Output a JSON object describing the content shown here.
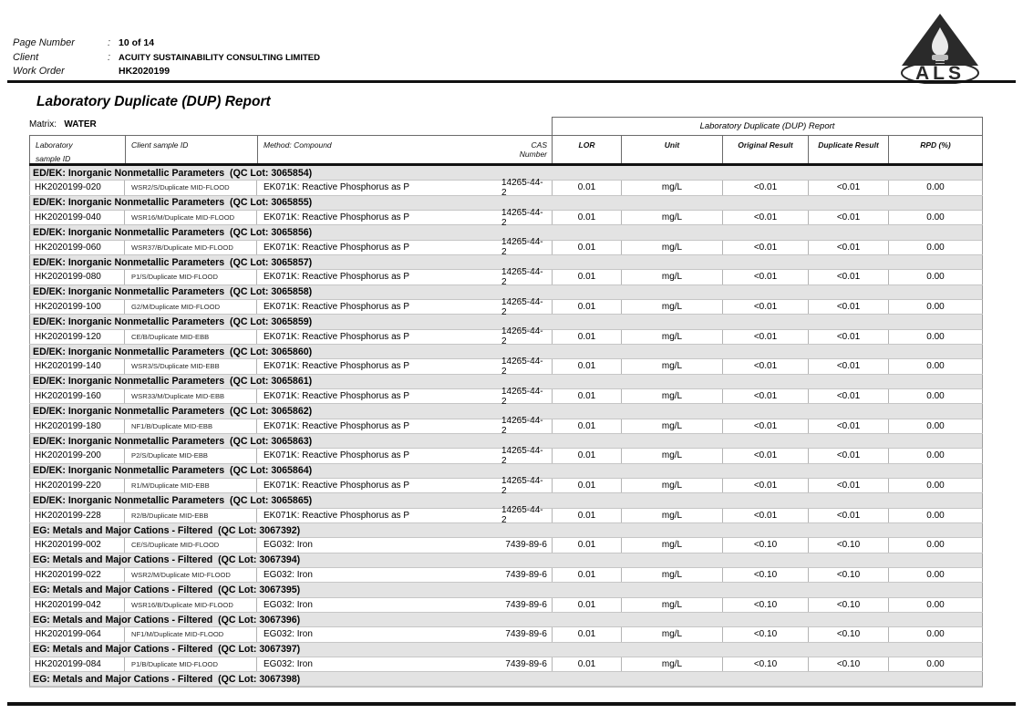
{
  "page_header": {
    "fields": [
      {
        "label": "Page Number",
        "sep": ":",
        "value": "10 of 14"
      },
      {
        "label": "Client",
        "sep": ":",
        "value": "ACUITY SUSTAINABILITY CONSULTING LIMITED"
      },
      {
        "label": "Work Order",
        "sep": "",
        "value": "HK2020199"
      }
    ],
    "logo_text": "ALS"
  },
  "title": "Laboratory Duplicate (DUP) Report",
  "matrix": {
    "label": "Matrix:",
    "value": "WATER"
  },
  "colors": {
    "group_row_bg": "#e3e3e3",
    "rule": "#111111",
    "logo_ink": "#222222"
  },
  "table": {
    "span_header": "Laboratory Duplicate (DUP) Report",
    "columns": {
      "lab_line1": "Laboratory",
      "lab_line2": "sample ID",
      "client": "Client sample ID",
      "method": "Method: Compound",
      "cas": "CAS Number",
      "lor": "LOR",
      "unit": "Unit",
      "original": "Original Result",
      "duplicate": "Duplicate Result",
      "rpd": "RPD (%)"
    },
    "groups": [
      {
        "label": "ED/EK: Inorganic Nonmetallic Parameters  (QC Lot: 3065854)",
        "rows": [
          [
            "HK2020199-020",
            "WSR2/S/Duplicate MID-FLOOD",
            "EK071K: Reactive Phosphorus as P",
            "14265-44-2",
            "0.01",
            "mg/L",
            "<0.01",
            "<0.01",
            "0.00"
          ]
        ]
      },
      {
        "label": "ED/EK: Inorganic Nonmetallic Parameters  (QC Lot: 3065855)",
        "rows": [
          [
            "HK2020199-040",
            "WSR16/M/Duplicate MID-FLOOD",
            "EK071K: Reactive Phosphorus as P",
            "14265-44-2",
            "0.01",
            "mg/L",
            "<0.01",
            "<0.01",
            "0.00"
          ]
        ]
      },
      {
        "label": "ED/EK: Inorganic Nonmetallic Parameters  (QC Lot: 3065856)",
        "rows": [
          [
            "HK2020199-060",
            "WSR37/B/Duplicate MID-FLOOD",
            "EK071K: Reactive Phosphorus as P",
            "14265-44-2",
            "0.01",
            "mg/L",
            "<0.01",
            "<0.01",
            "0.00"
          ]
        ]
      },
      {
        "label": "ED/EK: Inorganic Nonmetallic Parameters  (QC Lot: 3065857)",
        "rows": [
          [
            "HK2020199-080",
            "P1/S/Duplicate MID-FLOOD",
            "EK071K: Reactive Phosphorus as P",
            "14265-44-2",
            "0.01",
            "mg/L",
            "<0.01",
            "<0.01",
            "0.00"
          ]
        ]
      },
      {
        "label": "ED/EK: Inorganic Nonmetallic Parameters  (QC Lot: 3065858)",
        "rows": [
          [
            "HK2020199-100",
            "G2/M/Duplicate MID-FLOOD",
            "EK071K: Reactive Phosphorus as P",
            "14265-44-2",
            "0.01",
            "mg/L",
            "<0.01",
            "<0.01",
            "0.00"
          ]
        ]
      },
      {
        "label": "ED/EK: Inorganic Nonmetallic Parameters  (QC Lot: 3065859)",
        "rows": [
          [
            "HK2020199-120",
            "CE/B/Duplicate MID-EBB",
            "EK071K: Reactive Phosphorus as P",
            "14265-44-2",
            "0.01",
            "mg/L",
            "<0.01",
            "<0.01",
            "0.00"
          ]
        ]
      },
      {
        "label": "ED/EK: Inorganic Nonmetallic Parameters  (QC Lot: 3065860)",
        "rows": [
          [
            "HK2020199-140",
            "WSR3/S/Duplicate MID-EBB",
            "EK071K: Reactive Phosphorus as P",
            "14265-44-2",
            "0.01",
            "mg/L",
            "<0.01",
            "<0.01",
            "0.00"
          ]
        ]
      },
      {
        "label": "ED/EK: Inorganic Nonmetallic Parameters  (QC Lot: 3065861)",
        "rows": [
          [
            "HK2020199-160",
            "WSR33/M/Duplicate MID-EBB",
            "EK071K: Reactive Phosphorus as P",
            "14265-44-2",
            "0.01",
            "mg/L",
            "<0.01",
            "<0.01",
            "0.00"
          ]
        ]
      },
      {
        "label": "ED/EK: Inorganic Nonmetallic Parameters  (QC Lot: 3065862)",
        "rows": [
          [
            "HK2020199-180",
            "NF1/B/Duplicate MID-EBB",
            "EK071K: Reactive Phosphorus as P",
            "14265-44-2",
            "0.01",
            "mg/L",
            "<0.01",
            "<0.01",
            "0.00"
          ]
        ]
      },
      {
        "label": "ED/EK: Inorganic Nonmetallic Parameters  (QC Lot: 3065863)",
        "rows": [
          [
            "HK2020199-200",
            "P2/S/Duplicate MID-EBB",
            "EK071K: Reactive Phosphorus as P",
            "14265-44-2",
            "0.01",
            "mg/L",
            "<0.01",
            "<0.01",
            "0.00"
          ]
        ]
      },
      {
        "label": "ED/EK: Inorganic Nonmetallic Parameters  (QC Lot: 3065864)",
        "rows": [
          [
            "HK2020199-220",
            "R1/M/Duplicate MID-EBB",
            "EK071K: Reactive Phosphorus as P",
            "14265-44-2",
            "0.01",
            "mg/L",
            "<0.01",
            "<0.01",
            "0.00"
          ]
        ]
      },
      {
        "label": "ED/EK: Inorganic Nonmetallic Parameters  (QC Lot: 3065865)",
        "rows": [
          [
            "HK2020199-228",
            "R2/B/Duplicate MID-EBB",
            "EK071K: Reactive Phosphorus as P",
            "14265-44-2",
            "0.01",
            "mg/L",
            "<0.01",
            "<0.01",
            "0.00"
          ]
        ]
      },
      {
        "label": "EG: Metals and Major Cations - Filtered  (QC Lot: 3067392)",
        "rows": [
          [
            "HK2020199-002",
            "CE/S/Duplicate MID-FLOOD",
            "EG032: Iron",
            "7439-89-6",
            "0.01",
            "mg/L",
            "<0.10",
            "<0.10",
            "0.00"
          ]
        ]
      },
      {
        "label": "EG: Metals and Major Cations - Filtered  (QC Lot: 3067394)",
        "rows": [
          [
            "HK2020199-022",
            "WSR2/M/Duplicate MID-FLOOD",
            "EG032: Iron",
            "7439-89-6",
            "0.01",
            "mg/L",
            "<0.10",
            "<0.10",
            "0.00"
          ]
        ]
      },
      {
        "label": "EG: Metals and Major Cations - Filtered  (QC Lot: 3067395)",
        "rows": [
          [
            "HK2020199-042",
            "WSR16/B/Duplicate MID-FLOOD",
            "EG032: Iron",
            "7439-89-6",
            "0.01",
            "mg/L",
            "<0.10",
            "<0.10",
            "0.00"
          ]
        ]
      },
      {
        "label": "EG: Metals and Major Cations - Filtered  (QC Lot: 3067396)",
        "rows": [
          [
            "HK2020199-064",
            "NF1/M/Duplicate MID-FLOOD",
            "EG032: Iron",
            "7439-89-6",
            "0.01",
            "mg/L",
            "<0.10",
            "<0.10",
            "0.00"
          ]
        ]
      },
      {
        "label": "EG: Metals and Major Cations - Filtered  (QC Lot: 3067397)",
        "rows": [
          [
            "HK2020199-084",
            "P1/B/Duplicate MID-FLOOD",
            "EG032: Iron",
            "7439-89-6",
            "0.01",
            "mg/L",
            "<0.10",
            "<0.10",
            "0.00"
          ]
        ]
      },
      {
        "label": "EG: Metals and Major Cations - Filtered  (QC Lot: 3067398)",
        "rows": []
      }
    ]
  }
}
